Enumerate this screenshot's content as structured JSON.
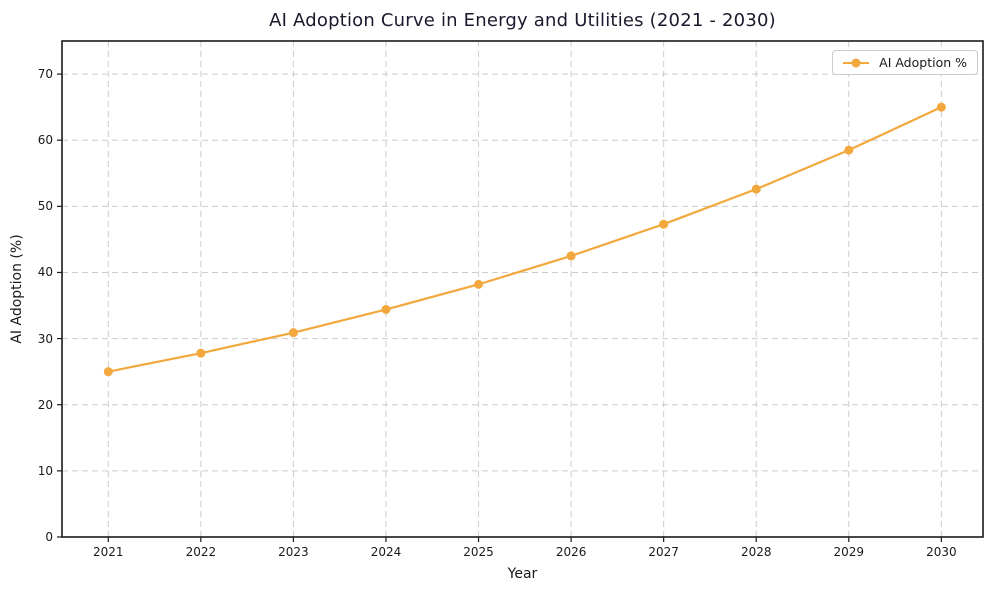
{
  "title": "AI Adoption Curve in Energy and Utilities (2021 - 2030)",
  "colors": {
    "line": "#F2A83D",
    "marker": "#F2A83D",
    "grid": "#CCCCCC",
    "spine": "#1A1A1A",
    "title_text": "#1A1A2E",
    "tick_text": "#1A1A1A",
    "legend_border": "#CCCCCC"
  },
  "legend": {
    "label": "AI Adoption %",
    "position": "upper right"
  },
  "chart_data": {
    "type": "line",
    "title": "AI Adoption Curve in Energy and Utilities (2021 - 2030)",
    "xlabel": "Year",
    "ylabel": "AI Adoption (%)",
    "x": [
      2021,
      2022,
      2023,
      2024,
      2025,
      2026,
      2027,
      2028,
      2029,
      2030
    ],
    "series": [
      {
        "name": "AI Adoption %",
        "values": [
          25.0,
          27.8,
          30.9,
          34.4,
          38.2,
          42.5,
          47.3,
          52.6,
          58.5,
          65.0
        ]
      }
    ],
    "xlim": [
      2020.5,
      2030.45
    ],
    "ylim": [
      0,
      75
    ],
    "yticks": [
      0,
      10,
      20,
      30,
      40,
      50,
      60,
      70
    ],
    "grid": true,
    "grid_style": "dashed",
    "legend_position": "upper right",
    "marker": "circle"
  }
}
